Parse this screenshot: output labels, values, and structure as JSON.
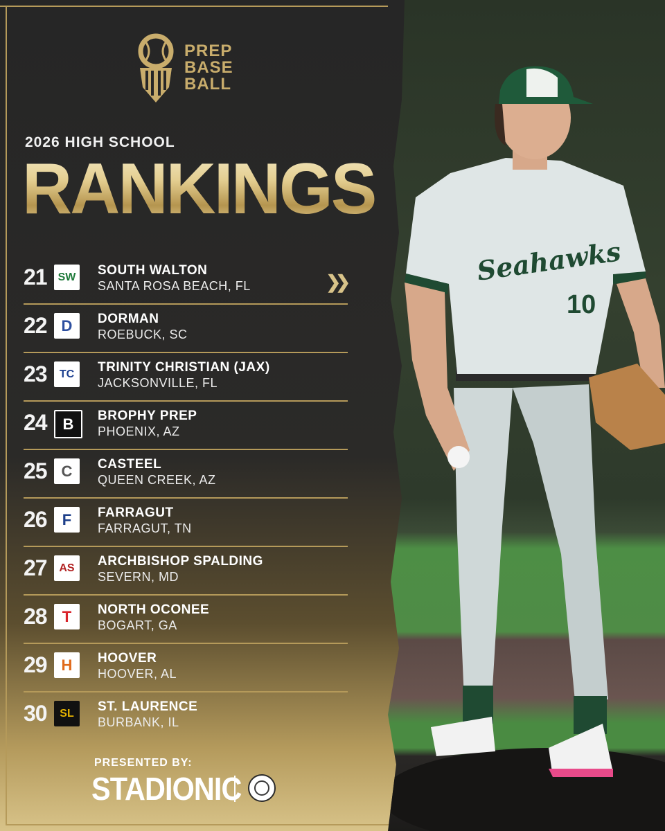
{
  "brand": {
    "logo_line1": "PREP",
    "logo_line2": "BASE",
    "logo_line3": "BALL",
    "gold": "#c9ad6c"
  },
  "header": {
    "subtitle": "2026 HIGH SCHOOL",
    "title": "RANKINGS"
  },
  "rankings": [
    {
      "rank": "21",
      "school": "SOUTH WALTON",
      "city": "SANTA ROSA BEACH, FL",
      "badge": "SW",
      "badge_color": "#1f7a3a"
    },
    {
      "rank": "22",
      "school": "DORMAN",
      "city": "ROEBUCK, SC",
      "badge": "D",
      "badge_color": "#2d4fa0"
    },
    {
      "rank": "23",
      "school": "TRINITY CHRISTIAN (JAX)",
      "city": "JACKSONVILLE, FL",
      "badge": "TC",
      "badge_color": "#1c3f8f"
    },
    {
      "rank": "24",
      "school": "BROPHY PREP",
      "city": "PHOENIX, AZ",
      "badge": "B",
      "badge_color": "#111111"
    },
    {
      "rank": "25",
      "school": "CASTEEL",
      "city": "QUEEN CREEK, AZ",
      "badge": "C",
      "badge_color": "#555555"
    },
    {
      "rank": "26",
      "school": "FARRAGUT",
      "city": "FARRAGUT, TN",
      "badge": "F",
      "badge_color": "#1d3f8a"
    },
    {
      "rank": "27",
      "school": "ARCHBISHOP SPALDING",
      "city": "SEVERN, MD",
      "badge": "AS",
      "badge_color": "#b22222"
    },
    {
      "rank": "28",
      "school": "NORTH OCONEE",
      "city": "BOGART, GA",
      "badge": "T",
      "badge_color": "#d9242b"
    },
    {
      "rank": "29",
      "school": "HOOVER",
      "city": "HOOVER, AL",
      "badge": "H",
      "badge_color": "#e06a1b"
    },
    {
      "rank": "30",
      "school": "ST. LAURENCE",
      "city": "BURBANK, IL",
      "badge": "SL",
      "badge_color": "#e8b400"
    }
  ],
  "icons": {
    "next": "double-chevron-right-icon",
    "logo": "baseball-shield-icon",
    "seal": "association-seal-icon"
  },
  "sponsor": {
    "presented_label": "PRESENTED BY:",
    "name": "STADIONIC"
  }
}
